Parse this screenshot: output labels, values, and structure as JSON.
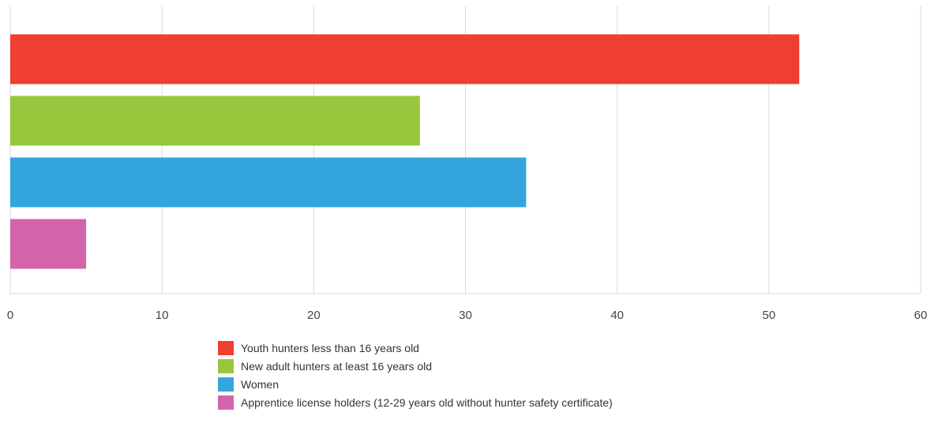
{
  "chart_data": {
    "type": "bar",
    "orientation": "horizontal",
    "title": "",
    "xlabel": "",
    "ylabel": "",
    "xlim": [
      0,
      60
    ],
    "x_ticks": [
      "0",
      "10",
      "20",
      "30",
      "40",
      "50",
      "60"
    ],
    "grid": true,
    "legend_position": "bottom",
    "series": [
      {
        "name": "Youth hunters less than 16 years old",
        "value": 52,
        "color": "#ef3e32"
      },
      {
        "name": "New adult hunters at least 16 years old",
        "value": 27,
        "color": "#99c63c"
      },
      {
        "name": "Women",
        "value": 34,
        "color": "#35a5dd"
      },
      {
        "name": "Apprentice license holders (12-29 years old without hunter safety certificate)",
        "value": 5,
        "color": "#d364aa"
      }
    ]
  }
}
